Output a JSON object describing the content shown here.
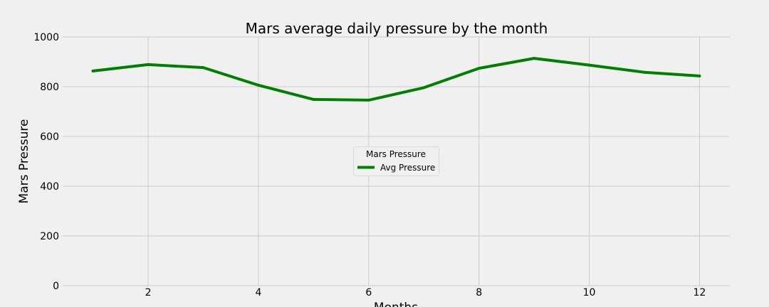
{
  "chart_data": {
    "type": "line",
    "title": "Mars average daily pressure by the month",
    "xlabel": "Months",
    "ylabel": "Mars Pressure",
    "x": [
      1,
      2,
      3,
      4,
      5,
      6,
      7,
      8,
      9,
      10,
      11,
      12
    ],
    "xticks": [
      "2",
      "4",
      "6",
      "8",
      "10",
      "12"
    ],
    "xtick_values": [
      2,
      4,
      6,
      8,
      10,
      12
    ],
    "yticks": [
      "0",
      "200",
      "400",
      "600",
      "800",
      "1000"
    ],
    "ytick_values": [
      0,
      200,
      400,
      600,
      800,
      1000
    ],
    "xlim": [
      0.45,
      12.55
    ],
    "ylim": [
      0,
      1000
    ],
    "grid": true,
    "legend": {
      "title": "Mars Pressure",
      "placement": "center"
    },
    "series": [
      {
        "name": "Avg Pressure",
        "color": "#008000",
        "values": [
          863,
          889,
          877,
          806,
          749,
          746,
          796,
          874,
          914,
          887,
          858,
          843
        ]
      }
    ]
  }
}
